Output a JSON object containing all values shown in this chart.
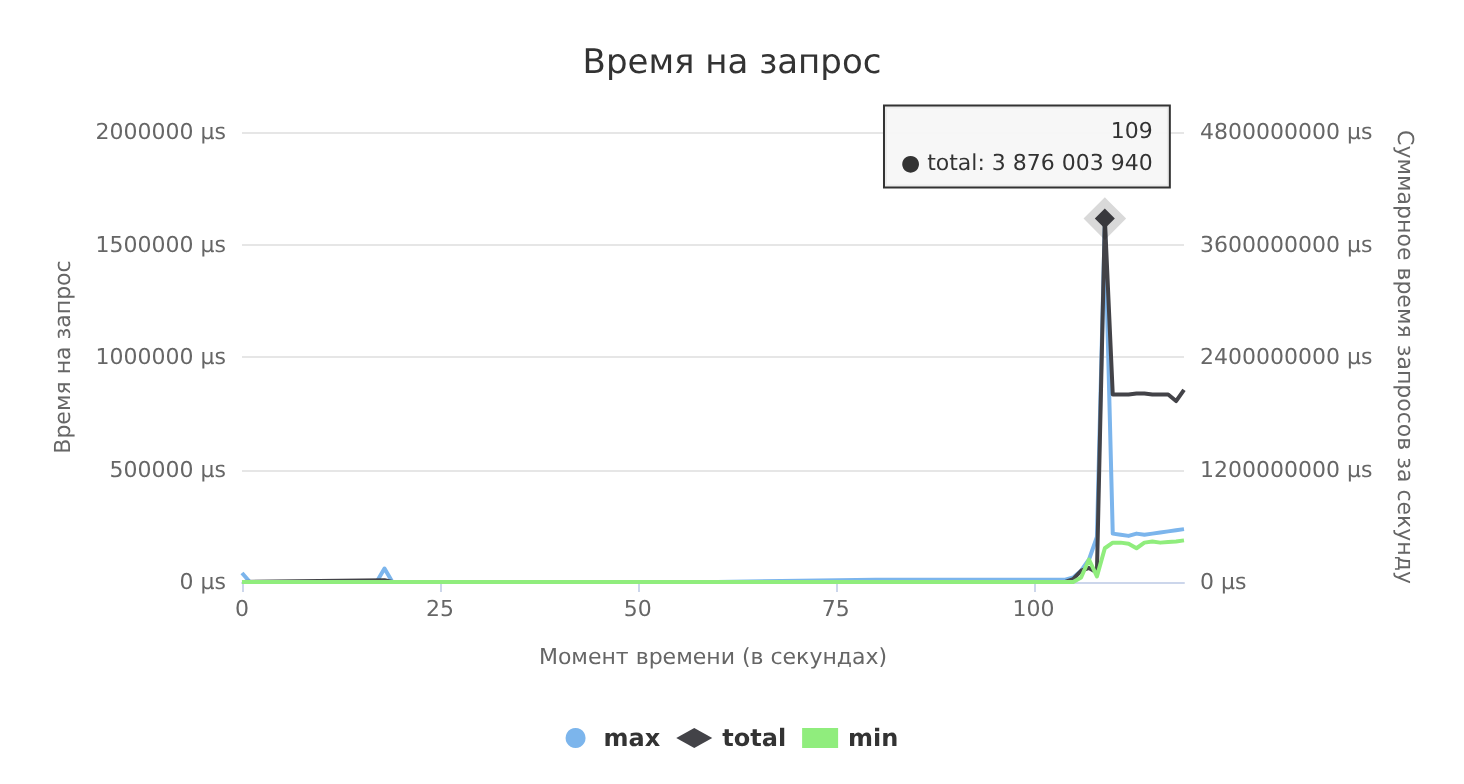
{
  "chart_data": {
    "type": "line",
    "title": "Время на запрос",
    "xlabel": "Момент времени (в секундах)",
    "ylabel": "Время на запрос",
    "y2label": "Суммарное время запросов за секунду",
    "xlim": [
      0,
      119
    ],
    "xticks": [
      0,
      25,
      50,
      75,
      100
    ],
    "ylim": [
      0,
      2000000
    ],
    "yticks": [
      {
        "value": 0,
        "label": "0 µs"
      },
      {
        "value": 500000,
        "label": "500000 µs"
      },
      {
        "value": 1000000,
        "label": "1000000 µs"
      },
      {
        "value": 1500000,
        "label": "1500000 µs"
      },
      {
        "value": 2000000,
        "label": "2000000 µs"
      }
    ],
    "y2lim": [
      0,
      4800000000
    ],
    "y2ticks": [
      {
        "value": 0,
        "label": "0 µs"
      },
      {
        "value": 1200000000,
        "label": "1200000000 µs"
      },
      {
        "value": 2400000000,
        "label": "2400000000 µs"
      },
      {
        "value": 3600000000,
        "label": "3600000000 µs"
      },
      {
        "value": 4800000000,
        "label": "4800000000 µs"
      }
    ],
    "series": [
      {
        "name": "max",
        "color": "#7cb5ec",
        "x": [
          0,
          1,
          2,
          17,
          18,
          19,
          30,
          60,
          80,
          100,
          104,
          105,
          106,
          107,
          108,
          109,
          110,
          111,
          112,
          113,
          114,
          115,
          116,
          117,
          118,
          119
        ],
        "values": [
          40000,
          0,
          0,
          0,
          60000,
          0,
          0,
          0,
          10000,
          10000,
          10000,
          20000,
          50000,
          100000,
          200000,
          1600000,
          215000,
          210000,
          205000,
          215000,
          210000,
          215000,
          220000,
          225000,
          230000,
          235000
        ]
      },
      {
        "name": "total",
        "color": "#434348",
        "axis": "y2",
        "x": [
          0,
          18,
          19,
          100,
          104,
          105,
          106,
          107,
          108,
          109,
          110,
          111,
          112,
          113,
          114,
          115,
          116,
          117,
          118,
          119
        ],
        "values": [
          0,
          20000000,
          0,
          0,
          0,
          30000000,
          120000000,
          150000000,
          100000000,
          3876003940,
          2000000000,
          2000000000,
          2000000000,
          2010000000,
          2010000000,
          2000000000,
          2000000000,
          2000000000,
          1930000000,
          2050000000
        ]
      },
      {
        "name": "min",
        "color": "#90ed7d",
        "x": [
          0,
          104,
          105,
          106,
          107,
          108,
          109,
          110,
          111,
          112,
          113,
          114,
          115,
          116,
          117,
          118,
          119
        ],
        "values": [
          0,
          0,
          0,
          20000,
          100000,
          25000,
          150000,
          175000,
          175000,
          170000,
          150000,
          175000,
          180000,
          175000,
          178000,
          180000,
          185000
        ]
      }
    ],
    "annotations": [
      "109\n● total: 3 876 003 940"
    ],
    "grid": "y",
    "legend": "bottom",
    "marker": "none",
    "line_style": "solid"
  }
}
